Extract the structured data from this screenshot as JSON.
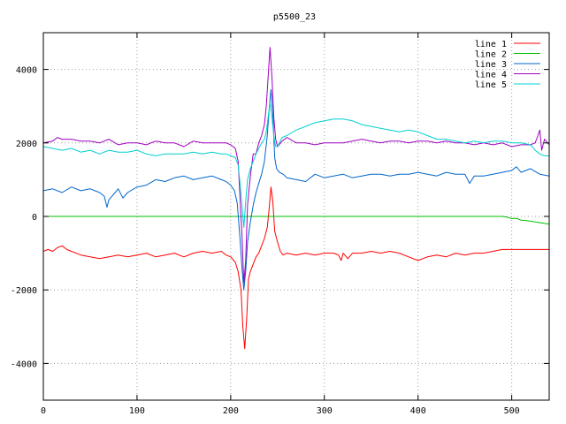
{
  "chart_data": {
    "type": "line",
    "title": "p5500_23",
    "xlabel": "",
    "ylabel": "",
    "xlim": [
      0,
      540
    ],
    "ylim": [
      -5000,
      5000
    ],
    "xticks": [
      0,
      100,
      200,
      300,
      400,
      500
    ],
    "yticks": [
      -4000,
      -2000,
      0,
      2000,
      4000
    ],
    "grid": true,
    "legend_position": "top-right",
    "series": [
      {
        "name": "line 1",
        "color": "#ff0000",
        "points": [
          [
            0,
            -950
          ],
          [
            5,
            -900
          ],
          [
            10,
            -950
          ],
          [
            15,
            -850
          ],
          [
            20,
            -800
          ],
          [
            25,
            -900
          ],
          [
            30,
            -950
          ],
          [
            40,
            -1050
          ],
          [
            50,
            -1100
          ],
          [
            60,
            -1150
          ],
          [
            70,
            -1100
          ],
          [
            80,
            -1050
          ],
          [
            90,
            -1100
          ],
          [
            100,
            -1050
          ],
          [
            110,
            -1000
          ],
          [
            120,
            -1100
          ],
          [
            130,
            -1050
          ],
          [
            140,
            -1000
          ],
          [
            150,
            -1100
          ],
          [
            160,
            -1000
          ],
          [
            170,
            -950
          ],
          [
            180,
            -1000
          ],
          [
            190,
            -950
          ],
          [
            195,
            -1050
          ],
          [
            200,
            -1100
          ],
          [
            205,
            -1250
          ],
          [
            208,
            -1500
          ],
          [
            211,
            -2000
          ],
          [
            213,
            -3000
          ],
          [
            215,
            -3600
          ],
          [
            217,
            -2800
          ],
          [
            219,
            -1700
          ],
          [
            221,
            -1500
          ],
          [
            224,
            -1300
          ],
          [
            227,
            -1100
          ],
          [
            230,
            -1000
          ],
          [
            233,
            -800
          ],
          [
            236,
            -600
          ],
          [
            239,
            -300
          ],
          [
            241,
            200
          ],
          [
            243,
            800
          ],
          [
            245,
            400
          ],
          [
            247,
            -400
          ],
          [
            250,
            -700
          ],
          [
            253,
            -950
          ],
          [
            256,
            -1050
          ],
          [
            260,
            -1000
          ],
          [
            270,
            -1050
          ],
          [
            280,
            -1000
          ],
          [
            290,
            -1050
          ],
          [
            300,
            -1000
          ],
          [
            310,
            -1000
          ],
          [
            315,
            -1050
          ],
          [
            318,
            -1200
          ],
          [
            320,
            -1000
          ],
          [
            325,
            -1150
          ],
          [
            330,
            -1000
          ],
          [
            340,
            -1000
          ],
          [
            350,
            -950
          ],
          [
            360,
            -1000
          ],
          [
            370,
            -950
          ],
          [
            380,
            -1000
          ],
          [
            390,
            -1100
          ],
          [
            400,
            -1200
          ],
          [
            410,
            -1100
          ],
          [
            420,
            -1050
          ],
          [
            430,
            -1100
          ],
          [
            440,
            -1000
          ],
          [
            450,
            -1050
          ],
          [
            460,
            -1000
          ],
          [
            470,
            -1000
          ],
          [
            480,
            -950
          ],
          [
            490,
            -900
          ],
          [
            500,
            -900
          ],
          [
            520,
            -900
          ],
          [
            540,
            -900
          ]
        ]
      },
      {
        "name": "line 2",
        "color": "#00c000",
        "points": [
          [
            0,
            0
          ],
          [
            490,
            0
          ],
          [
            495,
            -20
          ],
          [
            500,
            -60
          ],
          [
            505,
            -50
          ],
          [
            510,
            -100
          ],
          [
            515,
            -110
          ],
          [
            520,
            -130
          ],
          [
            525,
            -150
          ],
          [
            530,
            -170
          ],
          [
            535,
            -190
          ],
          [
            540,
            -210
          ]
        ]
      },
      {
        "name": "line 3",
        "color": "#0066cc",
        "points": [
          [
            0,
            700
          ],
          [
            10,
            750
          ],
          [
            20,
            650
          ],
          [
            30,
            800
          ],
          [
            40,
            700
          ],
          [
            50,
            750
          ],
          [
            60,
            650
          ],
          [
            65,
            550
          ],
          [
            68,
            250
          ],
          [
            70,
            450
          ],
          [
            75,
            600
          ],
          [
            80,
            750
          ],
          [
            85,
            500
          ],
          [
            90,
            650
          ],
          [
            100,
            800
          ],
          [
            110,
            850
          ],
          [
            120,
            1000
          ],
          [
            130,
            950
          ],
          [
            140,
            1050
          ],
          [
            150,
            1100
          ],
          [
            160,
            1000
          ],
          [
            170,
            1050
          ],
          [
            180,
            1100
          ],
          [
            190,
            1000
          ],
          [
            195,
            950
          ],
          [
            200,
            850
          ],
          [
            204,
            700
          ],
          [
            207,
            350
          ],
          [
            210,
            -600
          ],
          [
            212,
            -1400
          ],
          [
            214,
            -2000
          ],
          [
            216,
            -1500
          ],
          [
            218,
            -700
          ],
          [
            221,
            -150
          ],
          [
            224,
            300
          ],
          [
            227,
            650
          ],
          [
            230,
            900
          ],
          [
            233,
            1150
          ],
          [
            236,
            1500
          ],
          [
            239,
            2200
          ],
          [
            241,
            2900
          ],
          [
            243,
            3450
          ],
          [
            245,
            2800
          ],
          [
            247,
            1600
          ],
          [
            249,
            1300
          ],
          [
            252,
            1200
          ],
          [
            256,
            1150
          ],
          [
            260,
            1050
          ],
          [
            270,
            1000
          ],
          [
            280,
            950
          ],
          [
            290,
            1150
          ],
          [
            300,
            1050
          ],
          [
            310,
            1100
          ],
          [
            320,
            1150
          ],
          [
            330,
            1050
          ],
          [
            340,
            1100
          ],
          [
            350,
            1150
          ],
          [
            360,
            1150
          ],
          [
            370,
            1100
          ],
          [
            380,
            1150
          ],
          [
            390,
            1150
          ],
          [
            400,
            1200
          ],
          [
            410,
            1150
          ],
          [
            420,
            1100
          ],
          [
            430,
            1200
          ],
          [
            440,
            1150
          ],
          [
            450,
            1150
          ],
          [
            455,
            900
          ],
          [
            460,
            1100
          ],
          [
            470,
            1100
          ],
          [
            480,
            1150
          ],
          [
            490,
            1200
          ],
          [
            500,
            1250
          ],
          [
            505,
            1350
          ],
          [
            510,
            1200
          ],
          [
            520,
            1300
          ],
          [
            530,
            1150
          ],
          [
            540,
            1100
          ]
        ]
      },
      {
        "name": "line 4",
        "color": "#a000c0",
        "points": [
          [
            0,
            2000
          ],
          [
            10,
            2050
          ],
          [
            15,
            2150
          ],
          [
            20,
            2100
          ],
          [
            30,
            2100
          ],
          [
            40,
            2050
          ],
          [
            50,
            2050
          ],
          [
            60,
            2000
          ],
          [
            70,
            2100
          ],
          [
            80,
            1950
          ],
          [
            90,
            2000
          ],
          [
            100,
            2000
          ],
          [
            110,
            1950
          ],
          [
            120,
            2050
          ],
          [
            130,
            2000
          ],
          [
            140,
            2000
          ],
          [
            150,
            1900
          ],
          [
            160,
            2050
          ],
          [
            170,
            2000
          ],
          [
            180,
            2000
          ],
          [
            190,
            2000
          ],
          [
            195,
            2000
          ],
          [
            200,
            1950
          ],
          [
            205,
            1850
          ],
          [
            208,
            1500
          ],
          [
            210,
            500
          ],
          [
            212,
            -500
          ],
          [
            214,
            -1800
          ],
          [
            216,
            -1200
          ],
          [
            218,
            300
          ],
          [
            221,
            1100
          ],
          [
            224,
            1700
          ],
          [
            227,
            1700
          ],
          [
            230,
            2000
          ],
          [
            233,
            2200
          ],
          [
            236,
            2500
          ],
          [
            238,
            3000
          ],
          [
            240,
            3800
          ],
          [
            242,
            4600
          ],
          [
            244,
            3800
          ],
          [
            246,
            2700
          ],
          [
            248,
            2100
          ],
          [
            250,
            1900
          ],
          [
            255,
            2050
          ],
          [
            260,
            2150
          ],
          [
            270,
            2000
          ],
          [
            280,
            2000
          ],
          [
            290,
            1950
          ],
          [
            300,
            2000
          ],
          [
            310,
            2000
          ],
          [
            320,
            2000
          ],
          [
            330,
            2050
          ],
          [
            340,
            2100
          ],
          [
            350,
            2050
          ],
          [
            360,
            2000
          ],
          [
            370,
            2050
          ],
          [
            380,
            2050
          ],
          [
            390,
            2000
          ],
          [
            400,
            2050
          ],
          [
            410,
            2050
          ],
          [
            420,
            2000
          ],
          [
            430,
            2050
          ],
          [
            440,
            2000
          ],
          [
            450,
            2000
          ],
          [
            460,
            1950
          ],
          [
            470,
            2000
          ],
          [
            480,
            1950
          ],
          [
            490,
            2000
          ],
          [
            500,
            1900
          ],
          [
            510,
            1950
          ],
          [
            520,
            1950
          ],
          [
            525,
            2000
          ],
          [
            528,
            2200
          ],
          [
            530,
            2350
          ],
          [
            532,
            1800
          ],
          [
            535,
            2100
          ],
          [
            540,
            1950
          ]
        ]
      },
      {
        "name": "line 5",
        "color": "#00d0d0",
        "points": [
          [
            0,
            1900
          ],
          [
            10,
            1850
          ],
          [
            20,
            1800
          ],
          [
            30,
            1850
          ],
          [
            40,
            1750
          ],
          [
            50,
            1800
          ],
          [
            60,
            1700
          ],
          [
            70,
            1800
          ],
          [
            80,
            1750
          ],
          [
            90,
            1750
          ],
          [
            100,
            1800
          ],
          [
            110,
            1700
          ],
          [
            120,
            1650
          ],
          [
            130,
            1700
          ],
          [
            140,
            1700
          ],
          [
            150,
            1700
          ],
          [
            160,
            1750
          ],
          [
            170,
            1700
          ],
          [
            180,
            1750
          ],
          [
            190,
            1700
          ],
          [
            195,
            1700
          ],
          [
            200,
            1650
          ],
          [
            205,
            1600
          ],
          [
            208,
            1400
          ],
          [
            210,
            900
          ],
          [
            212,
            300
          ],
          [
            214,
            -300
          ],
          [
            216,
            400
          ],
          [
            218,
            1000
          ],
          [
            221,
            1300
          ],
          [
            224,
            1500
          ],
          [
            227,
            1700
          ],
          [
            230,
            1850
          ],
          [
            233,
            2000
          ],
          [
            236,
            2100
          ],
          [
            238,
            2300
          ],
          [
            240,
            2700
          ],
          [
            242,
            3100
          ],
          [
            244,
            2700
          ],
          [
            246,
            2200
          ],
          [
            248,
            1900
          ],
          [
            250,
            1900
          ],
          [
            255,
            2150
          ],
          [
            260,
            2200
          ],
          [
            270,
            2350
          ],
          [
            280,
            2450
          ],
          [
            290,
            2550
          ],
          [
            300,
            2600
          ],
          [
            310,
            2650
          ],
          [
            320,
            2650
          ],
          [
            330,
            2600
          ],
          [
            340,
            2500
          ],
          [
            350,
            2450
          ],
          [
            360,
            2400
          ],
          [
            370,
            2350
          ],
          [
            380,
            2300
          ],
          [
            390,
            2350
          ],
          [
            400,
            2300
          ],
          [
            410,
            2200
          ],
          [
            420,
            2100
          ],
          [
            430,
            2100
          ],
          [
            440,
            2050
          ],
          [
            450,
            2000
          ],
          [
            460,
            2050
          ],
          [
            470,
            2000
          ],
          [
            480,
            2050
          ],
          [
            490,
            2050
          ],
          [
            500,
            2000
          ],
          [
            510,
            2000
          ],
          [
            520,
            1950
          ],
          [
            525,
            1800
          ],
          [
            530,
            1700
          ],
          [
            535,
            1650
          ],
          [
            540,
            1650
          ]
        ]
      }
    ]
  }
}
